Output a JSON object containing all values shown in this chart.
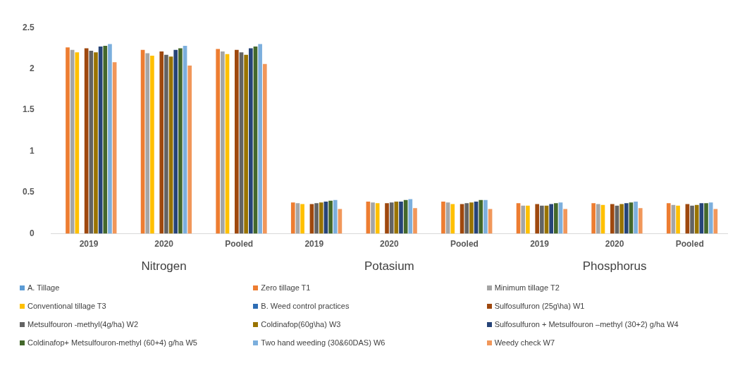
{
  "chart_data": {
    "type": "bar",
    "categories": [
      "2019",
      "2020",
      "Pooled",
      "2019",
      "2020",
      "Pooled",
      "2019",
      "2020",
      "Pooled"
    ],
    "ylim": [
      0,
      2.5
    ],
    "yticks": [
      0,
      0.5,
      1,
      1.5,
      2,
      2.5
    ],
    "grid": false,
    "legend": "bottom",
    "annotations": [
      "Nitrogen",
      "Potasium",
      "Phosphorus"
    ],
    "series": [
      {
        "name": "A. Tillage",
        "color": "#5b9bd5",
        "values": [
          null,
          null,
          null,
          null,
          null,
          null,
          null,
          null,
          null
        ]
      },
      {
        "name": "Zero tillage T1",
        "color": "#ed7d31",
        "values": [
          2.26,
          2.23,
          2.24,
          0.38,
          0.39,
          0.39,
          0.37,
          0.37,
          0.37
        ]
      },
      {
        "name": "Minimum tillage T2",
        "color": "#a5a5a5",
        "values": [
          2.23,
          2.19,
          2.21,
          0.37,
          0.38,
          0.38,
          0.34,
          0.36,
          0.35
        ]
      },
      {
        "name": "Conventional tillage T3",
        "color": "#ffc000",
        "values": [
          2.2,
          2.16,
          2.18,
          0.36,
          0.37,
          0.36,
          0.34,
          0.35,
          0.34
        ]
      },
      {
        "name": "B. Weed control practices",
        "color": "#2e6db4",
        "values": [
          null,
          null,
          null,
          null,
          null,
          null,
          null,
          null,
          null
        ]
      },
      {
        "name": "Sulfosulfuron (25g\\ha) W1",
        "color": "#9e480e",
        "values": [
          2.25,
          2.21,
          2.23,
          0.36,
          0.37,
          0.36,
          0.36,
          0.36,
          0.36
        ]
      },
      {
        "name": "Metsulfouron -methyl(4g/ha) W2",
        "color": "#636363",
        "values": [
          2.22,
          2.17,
          2.2,
          0.37,
          0.38,
          0.37,
          0.34,
          0.34,
          0.34
        ]
      },
      {
        "name": "Coldinafop(60g\\ha) W3",
        "color": "#997300",
        "values": [
          2.2,
          2.15,
          2.17,
          0.38,
          0.39,
          0.38,
          0.34,
          0.36,
          0.35
        ]
      },
      {
        "name": "Sulfosulfuron + Metsulfouron –methyl (30+2) g/ha W4",
        "color": "#264478",
        "values": [
          2.27,
          2.23,
          2.25,
          0.39,
          0.39,
          0.39,
          0.36,
          0.37,
          0.37
        ]
      },
      {
        "name": "Coldinafop+ Metsulfouron-methyl (60+4) g/ha W5",
        "color": "#43682b",
        "values": [
          2.28,
          2.25,
          2.27,
          0.4,
          0.41,
          0.41,
          0.37,
          0.38,
          0.37
        ]
      },
      {
        "name": "Two hand weeding (30&60DAS) W6",
        "color": "#7cafdd",
        "values": [
          2.3,
          2.28,
          2.3,
          0.41,
          0.42,
          0.41,
          0.38,
          0.39,
          0.38
        ]
      },
      {
        "name": "Weedy check W7",
        "color": "#f1975a",
        "values": [
          2.08,
          2.04,
          2.06,
          0.3,
          0.31,
          0.3,
          0.3,
          0.31,
          0.3
        ]
      }
    ]
  }
}
